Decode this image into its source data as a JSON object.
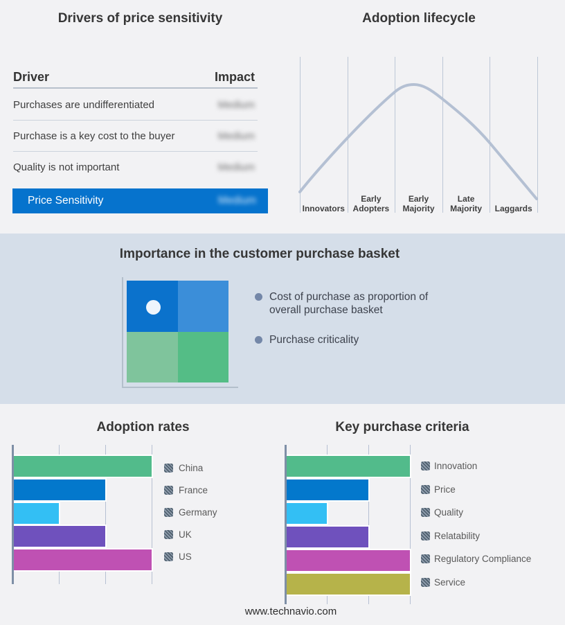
{
  "panels": {
    "drivers": {
      "title": "Drivers of price sensitivity",
      "columns": {
        "driver": "Driver",
        "impact": "Impact"
      },
      "rows": [
        {
          "driver": "Purchases are undifferentiated",
          "impact": "Medium",
          "impact_blurred": true
        },
        {
          "driver": "Purchase is a key cost to the buyer",
          "impact": "Medium",
          "impact_blurred": true
        },
        {
          "driver": "Quality is not important",
          "impact": "Medium",
          "impact_blurred": true
        }
      ],
      "highlight": {
        "driver": "Price Sensitivity",
        "impact": "Medium",
        "impact_blurred": true,
        "bg_color": "#0673cd"
      }
    },
    "lifecycle": {
      "title": "Adoption lifecycle",
      "stages": [
        "Innovators",
        "Early Adopters",
        "Early Majority",
        "Late Majority",
        "Laggards"
      ],
      "curve_color": "#b4c0d3",
      "gridline_color": "#bcc7d6"
    },
    "basket": {
      "title": "Importance in the customer purchase basket",
      "band_bg": "#d5dee9",
      "bullets": [
        "Cost of purchase as proportion of overall purchase basket",
        "Purchase criticality"
      ],
      "quadrants": {
        "top_left": "#0b72cc",
        "top_right": "#3b8ed9",
        "bottom_left": "#7fc49c",
        "bottom_right": "#54bd86"
      },
      "marker": {
        "quadrant": "top_left",
        "color": "#eef5fc"
      }
    }
  },
  "chart_data": [
    {
      "type": "bar",
      "orientation": "horizontal",
      "title": "Adoption rates",
      "categories": [
        "China",
        "France",
        "Germany",
        "UK",
        "US"
      ],
      "values": [
        3,
        2,
        1,
        2,
        3
      ],
      "xlim": [
        0,
        3
      ],
      "grid": true,
      "axis_ticks_labeled": false,
      "legend_position": "right",
      "colors": [
        "#52bb8b",
        "#0378cc",
        "#33bff4",
        "#6f51bd",
        "#bf51b3"
      ]
    },
    {
      "type": "bar",
      "orientation": "horizontal",
      "title": "Key purchase criteria",
      "categories": [
        "Innovation",
        "Price",
        "Quality",
        "Relatability",
        "Regulatory Compliance",
        "Service"
      ],
      "values": [
        3,
        2,
        1,
        2,
        3,
        3
      ],
      "xlim": [
        0,
        3
      ],
      "grid": true,
      "axis_ticks_labeled": false,
      "legend_position": "right",
      "colors": [
        "#52bb8b",
        "#0378cc",
        "#33bff4",
        "#6f51bd",
        "#bf51b3",
        "#b6b34a"
      ]
    }
  ],
  "footer": {
    "url": "www.technavio.com"
  }
}
